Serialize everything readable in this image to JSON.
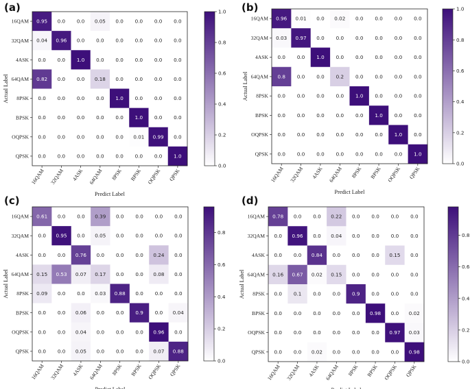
{
  "figure": {
    "colormap": {
      "low": "#ffffff",
      "high": "#3d0f7a"
    }
  },
  "chart_data": [
    {
      "type": "heatmap",
      "panel": "(a)",
      "xlabel": "Predict Label",
      "ylabel": "Actual Label",
      "x_categories": [
        "16QAM",
        "32QAM",
        "4ASK",
        "64QAM",
        "8PSK",
        "BPSK",
        "OQPSK",
        "QPSK"
      ],
      "y_categories": [
        "16QAM",
        "32QAM",
        "4ASK",
        "64QAM",
        "8PSK",
        "BPSK",
        "OQPSK",
        "QPSK"
      ],
      "matrix": [
        [
          "0.95",
          "0.0",
          "0.0",
          "0.05",
          "0.0",
          "0.0",
          "0.0",
          "0.0"
        ],
        [
          "0.04",
          "0.96",
          "0.0",
          "0.0",
          "0.0",
          "0.0",
          "0.0",
          "0.0"
        ],
        [
          "0.0",
          "0.0",
          "1.0",
          "0.0",
          "0.0",
          "0.0",
          "0.0",
          "0.0"
        ],
        [
          "0.82",
          "0.0",
          "0.0",
          "0.18",
          "0.0",
          "0.0",
          "0.0",
          "0.0"
        ],
        [
          "0.0",
          "0.0",
          "0.0",
          "0.0",
          "1.0",
          "0.0",
          "0.0",
          "0.0"
        ],
        [
          "0.0",
          "0.0",
          "0.0",
          "0.0",
          "0.0",
          "1.0",
          "0.0",
          "0.0"
        ],
        [
          "0.0",
          "0.0",
          "0.0",
          "0.0",
          "0.0",
          "0.01",
          "0.99",
          "0.0"
        ],
        [
          "0.0",
          "0.0",
          "0.0",
          "0.0",
          "0.0",
          "0.0",
          "0.0",
          "1.0"
        ]
      ],
      "colorbar": {
        "min": 0.0,
        "max": 1.0,
        "ticks": [
          "0.0",
          "0.2",
          "0.4",
          "0.6",
          "0.8",
          "1.0"
        ]
      }
    },
    {
      "type": "heatmap",
      "panel": "(b)",
      "xlabel": "Predict Label",
      "ylabel": "Actual Label",
      "x_categories": [
        "16QAM",
        "32QAM",
        "4ASK",
        "64QAM",
        "8PSK",
        "BPSK",
        "OQPSK",
        "QPSK"
      ],
      "y_categories": [
        "16QAM",
        "32QAM",
        "4ASK",
        "64QAM",
        "8PSK",
        "BPSK",
        "OQPSK",
        "QPSK"
      ],
      "matrix": [
        [
          "0.96",
          "0.01",
          "0.0",
          "0.02",
          "0.0",
          "0.0",
          "0.0",
          "0.0"
        ],
        [
          "0.03",
          "0.97",
          "0.0",
          "0.0",
          "0.0",
          "0.0",
          "0.0",
          "0.0"
        ],
        [
          "0.0",
          "0.0",
          "1.0",
          "0.0",
          "0.0",
          "0.0",
          "0.0",
          "0.0"
        ],
        [
          "0.8",
          "0.0",
          "0.0",
          "0.2",
          "0.0",
          "0.0",
          "0.0",
          "0.0"
        ],
        [
          "0.0",
          "0.0",
          "0.0",
          "0.0",
          "1.0",
          "0.0",
          "0.0",
          "0.0"
        ],
        [
          "0.0",
          "0.0",
          "0.0",
          "0.0",
          "0.0",
          "1.0",
          "0.0",
          "0.0"
        ],
        [
          "0.0",
          "0.0",
          "0.0",
          "0.0",
          "0.0",
          "0.0",
          "1.0",
          "0.0"
        ],
        [
          "0.0",
          "0.0",
          "0.0",
          "0.0",
          "0.0",
          "0.0",
          "0.0",
          "1.0"
        ]
      ],
      "colorbar": {
        "min": 0.0,
        "max": 1.0,
        "ticks": [
          "0.0",
          "0.2",
          "0.4",
          "0.6",
          "0.8",
          "1.0"
        ]
      }
    },
    {
      "type": "heatmap",
      "panel": "(c)",
      "xlabel": "Predict Label",
      "ylabel": "Actual Label",
      "x_categories": [
        "16QAM",
        "32QAM",
        "4ASK",
        "64QAM",
        "8PSK",
        "BPSK",
        "OQPSK",
        "QPSK"
      ],
      "y_categories": [
        "16QAM",
        "32QAM",
        "4ASK",
        "64QAM",
        "8PSK",
        "BPSK",
        "OQPSK",
        "QPSK"
      ],
      "matrix": [
        [
          "0.61",
          "0.0",
          "0.0",
          "0.39",
          "0.0",
          "0.0",
          "0.0",
          "0.0"
        ],
        [
          "0.0",
          "0.95",
          "0.0",
          "0.05",
          "0.0",
          "0.0",
          "0.0",
          "0.0"
        ],
        [
          "0.0",
          "0.0",
          "0.76",
          "0.0",
          "0.0",
          "0.0",
          "0.24",
          "0.0"
        ],
        [
          "0.15",
          "0.53",
          "0.07",
          "0.17",
          "0.0",
          "0.0",
          "0.08",
          "0.0"
        ],
        [
          "0.09",
          "0.0",
          "0.0",
          "0.03",
          "0.88",
          "0.0",
          "0.0",
          "0.0"
        ],
        [
          "0.0",
          "0.0",
          "0.06",
          "0.0",
          "0.0",
          "0.9",
          "0.0",
          "0.04"
        ],
        [
          "0.0",
          "0.0",
          "0.04",
          "0.0",
          "0.0",
          "0.0",
          "0.96",
          "0.0"
        ],
        [
          "0.0",
          "0.0",
          "0.05",
          "0.0",
          "0.0",
          "0.0",
          "0.07",
          "0.88"
        ]
      ],
      "colorbar": {
        "min": 0.0,
        "max": 0.96,
        "ticks": [
          "0.0",
          "0.2",
          "0.4",
          "0.6",
          "0.8"
        ]
      }
    },
    {
      "type": "heatmap",
      "panel": "(d)",
      "xlabel": "Predict Label",
      "ylabel": "Actual Label",
      "x_categories": [
        "16QAM",
        "32QAM",
        "4ASK",
        "64QAM",
        "8PSK",
        "BPSK",
        "OQPSK",
        "QPSK"
      ],
      "y_categories": [
        "16QAM",
        "32QAM",
        "4ASK",
        "64QAM",
        "8PSK",
        "BPSK",
        "OQPSK",
        "QPSK"
      ],
      "matrix": [
        [
          "0.78",
          "0.0",
          "0.0",
          "0.22",
          "0.0",
          "0.0",
          "0.0",
          "0.0"
        ],
        [
          "0.0",
          "0.96",
          "0.0",
          "0.04",
          "0.0",
          "0.0",
          "0.0",
          "0.0"
        ],
        [
          "0.0",
          "0.0",
          "0.84",
          "0.0",
          "0.0",
          "0.0",
          "0.15",
          "0.0"
        ],
        [
          "0.16",
          "0.67",
          "0.02",
          "0.15",
          "0.0",
          "0.0",
          "0.0",
          "0.0"
        ],
        [
          "0.0",
          "0.1",
          "0.0",
          "0.0",
          "0.9",
          "0.0",
          "0.0",
          "0.0"
        ],
        [
          "0.0",
          "0.0",
          "0.0",
          "0.0",
          "0.0",
          "0.98",
          "0.0",
          "0.02"
        ],
        [
          "0.0",
          "0.0",
          "0.0",
          "0.0",
          "0.0",
          "0.0",
          "0.97",
          "0.03"
        ],
        [
          "0.0",
          "0.0",
          "0.02",
          "0.0",
          "0.0",
          "0.0",
          "0.0",
          "0.98"
        ]
      ],
      "colorbar": {
        "min": 0.0,
        "max": 0.98,
        "ticks": [
          "0.0",
          "0.2",
          "0.4",
          "0.6",
          "0.8"
        ]
      }
    }
  ]
}
